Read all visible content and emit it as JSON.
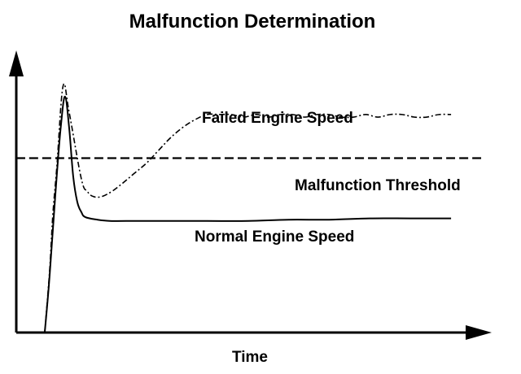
{
  "chart_data": {
    "type": "line",
    "title": "Malfunction Determination",
    "xlabel": "Time",
    "ylabel": "",
    "axis_ticks": false,
    "grid": false,
    "legend": "none",
    "colors": {
      "background": "#ffffff",
      "ink": "#000000"
    },
    "series": [
      {
        "name": "Failed Engine Speed",
        "style": "dash-dot",
        "x": [
          0.0,
          0.12,
          0.2,
          0.3,
          0.45,
          0.6,
          0.9,
          1.05,
          1.2,
          1.4,
          1.65,
          1.9,
          2.2,
          2.5,
          2.8,
          3.1,
          3.4,
          3.7,
          4.0,
          4.3,
          4.6,
          4.9,
          5.2,
          5.5,
          5.8,
          6.1,
          6.4,
          6.7,
          7.0,
          7.3,
          7.6,
          7.9,
          8.2,
          8.5,
          8.8,
          9.1,
          9.4,
          9.7,
          10.0
        ],
        "values": [
          0.0,
          2.4,
          4.6,
          6.5,
          9.6,
          8.6,
          6.0,
          5.5,
          5.3,
          5.3,
          5.5,
          5.8,
          6.2,
          6.6,
          7.1,
          7.6,
          8.0,
          8.3,
          8.5,
          8.5,
          8.5,
          8.4,
          8.5,
          8.4,
          8.5,
          8.5,
          8.4,
          8.5,
          8.5,
          8.4,
          8.4,
          8.5,
          8.4,
          8.5,
          8.5,
          8.4,
          8.4,
          8.5,
          8.5
        ]
      },
      {
        "name": "Normal Engine Speed",
        "style": "solid",
        "x": [
          0.0,
          0.1,
          0.2,
          0.3,
          0.4,
          0.5,
          0.6,
          0.7,
          0.8,
          0.9,
          1.0,
          1.3,
          1.6,
          2.0,
          3.0,
          4.0,
          5.0,
          6.0,
          7.0,
          8.0,
          9.0,
          10.0
        ],
        "values": [
          0.0,
          1.8,
          4.0,
          6.2,
          8.1,
          9.2,
          8.0,
          6.1,
          5.1,
          4.7,
          4.5,
          4.4,
          4.35,
          4.35,
          4.35,
          4.35,
          4.35,
          4.4,
          4.4,
          4.45,
          4.45,
          4.45
        ]
      },
      {
        "name": "Malfunction Threshold",
        "style": "dashed",
        "x": [
          -0.7,
          10.8
        ],
        "values": [
          6.8,
          6.8
        ]
      }
    ],
    "annotations": [
      {
        "text": "Failed Engine Speed",
        "series": "Failed Engine Speed",
        "position": "above"
      },
      {
        "text": "Malfunction Threshold",
        "series": "Malfunction Threshold",
        "position": "below-right"
      },
      {
        "text": "Normal Engine Speed",
        "series": "Normal Engine Speed",
        "position": "below"
      }
    ],
    "xlim": [
      -0.7,
      11.0
    ],
    "ylim": [
      0,
      11.0
    ]
  }
}
